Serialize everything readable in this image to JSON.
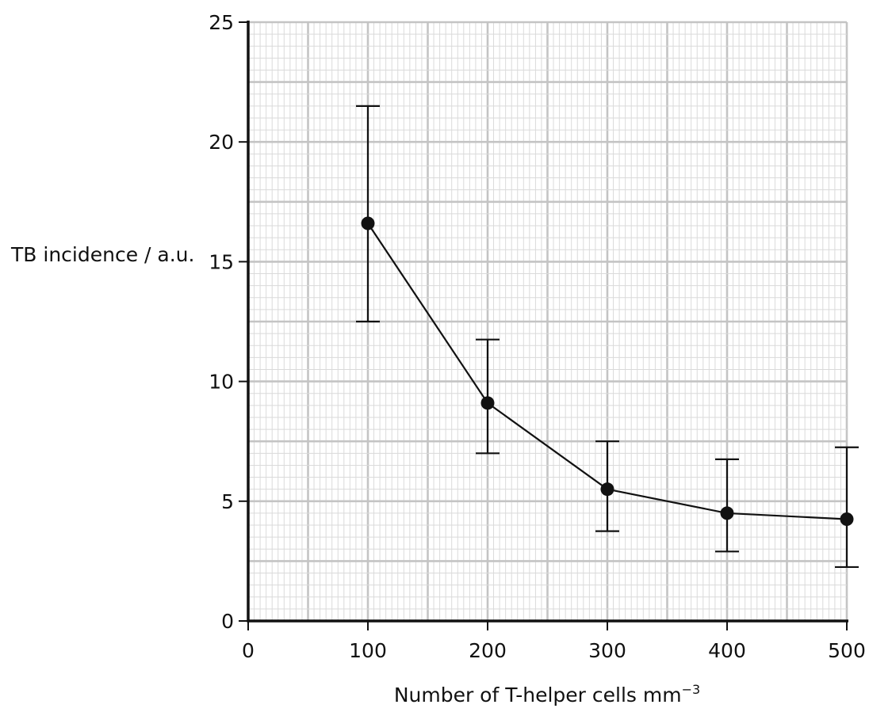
{
  "chart_data": {
    "type": "line",
    "xlabel": "Number of T-helper cells mm",
    "xlabel_superscript": "−3",
    "ylabel": "TB incidence / a.u.",
    "xlim": [
      0,
      500
    ],
    "ylim": [
      0,
      25
    ],
    "x_ticks": [
      0,
      100,
      200,
      300,
      400,
      500
    ],
    "y_ticks": [
      0,
      5,
      10,
      15,
      20,
      25
    ],
    "grid": true,
    "colors": {
      "grid_major": "#c4c4c4",
      "grid_minor": "#dadada",
      "axis": "#111111",
      "line": "#111111",
      "marker": "#111111"
    },
    "series": [
      {
        "x": [
          100,
          200,
          300,
          400,
          500
        ],
        "y": [
          16.6,
          9.1,
          5.5,
          4.5,
          4.25
        ],
        "error_low": [
          12.5,
          7.0,
          3.75,
          2.9,
          2.25
        ],
        "error_high": [
          21.5,
          11.75,
          7.5,
          6.75,
          7.25
        ]
      }
    ]
  }
}
